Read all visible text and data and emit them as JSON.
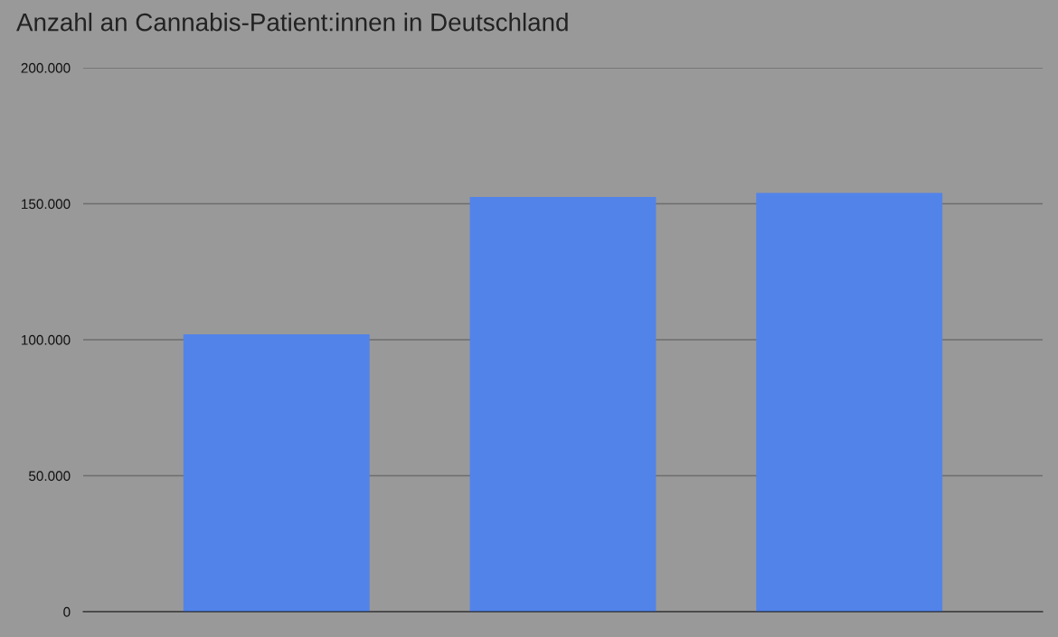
{
  "chart_data": {
    "type": "bar",
    "title": "Anzahl an Cannabis-Patient:innen in Deutschland",
    "categories": [
      null,
      null,
      null
    ],
    "values": [
      102000,
      152500,
      154000
    ],
    "color": "#5283e9",
    "ylim": [
      0,
      200000
    ],
    "yticks": [
      {
        "value": 0,
        "label": "0"
      },
      {
        "value": 50000,
        "label": "50.000"
      },
      {
        "value": 100000,
        "label": "100.000"
      },
      {
        "value": 150000,
        "label": "150.000"
      },
      {
        "value": 200000,
        "label": "200.000"
      }
    ],
    "grid": "y",
    "legend": false
  }
}
